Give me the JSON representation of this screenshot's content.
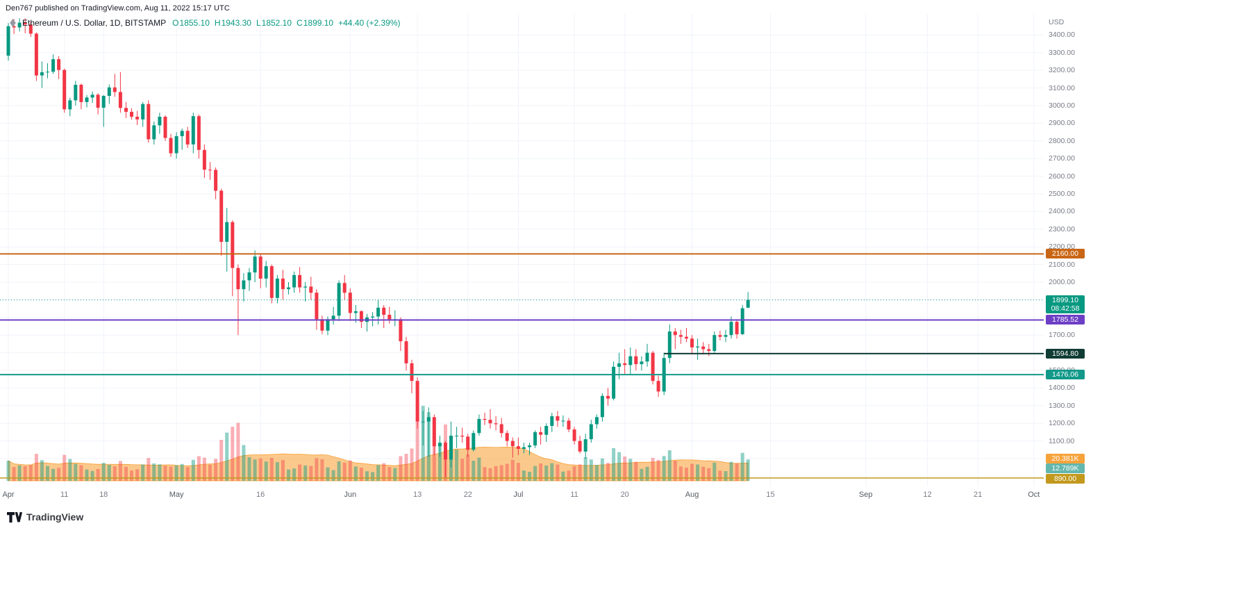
{
  "header": {
    "published_line": "Den767 published on TradingView.com, Aug 11, 2022 15:17 UTC"
  },
  "legend": {
    "title": "Ethereum / U.S. Dollar, 1D, BITSTAMP",
    "open_label": "O",
    "open": "1855.10",
    "high_label": "H",
    "high": "1943.30",
    "low_label": "L",
    "low": "1852.10",
    "close_label": "C",
    "close": "1899.10",
    "change": "+44.40 (+2.39%)",
    "up_color": "#089981"
  },
  "axis": {
    "currency": "USD",
    "price_tick_min": 1000,
    "price_tick_max": 3400,
    "price_tick_step": 100,
    "time_ticks": [
      [
        "Apr",
        0
      ],
      [
        "11",
        10
      ],
      [
        "18",
        17
      ],
      [
        "May",
        30
      ],
      [
        "16",
        45
      ],
      [
        "Jun",
        61
      ],
      [
        "13",
        73
      ],
      [
        "22",
        82
      ],
      [
        "Jul",
        91
      ],
      [
        "11",
        101
      ],
      [
        "20",
        110
      ],
      [
        "Aug",
        122
      ],
      [
        "15",
        136
      ],
      [
        "Sep",
        153
      ],
      [
        "12",
        164
      ],
      [
        "21",
        173
      ],
      [
        "Oct",
        183
      ]
    ]
  },
  "levels": [
    {
      "label": "2160.00",
      "price": 2160.0,
      "color": "#c96615",
      "from_day": 0
    },
    {
      "label": "1785.52",
      "price": 1785.52,
      "color": "#6c3fc5",
      "from_day": 0
    },
    {
      "label": "1594.80",
      "price": 1594.8,
      "color": "#103c34",
      "from_day": 117
    },
    {
      "label": "1476.06",
      "price": 1476.06,
      "color": "#12998a",
      "from_day": 0
    },
    {
      "label": "890.00",
      "price": 890.0,
      "color": "#c2991c",
      "from_day": 0,
      "thin": true
    }
  ],
  "last_price": {
    "label": "1899.10",
    "countdown": "08:42:58",
    "price": 1899.1,
    "color": "#089981"
  },
  "volume_badges": [
    {
      "label": "20.381K",
      "color": "#f7a33b"
    },
    {
      "label": "12.789K",
      "color": "#63b7ad"
    }
  ],
  "footer": {
    "logo_text": "TradingView"
  },
  "chart_data": {
    "type": "candlestick",
    "title": "Ethereum / U.S. Dollar",
    "interval": "1D",
    "exchange": "BITSTAMP",
    "x_axis": {
      "start": "2022-04-01",
      "last_candle": "2022-08-11",
      "end_visible": "2022-10-01"
    },
    "y_axis": {
      "label": "USD",
      "visible_range": [
        890,
        3500
      ]
    },
    "last_ohlc": {
      "o": 1855.1,
      "h": 1943.3,
      "l": 1852.1,
      "c": 1899.1,
      "change": 44.4,
      "change_pct": 2.39
    },
    "horizontal_levels": [
      2160.0,
      1785.52,
      1594.8,
      1476.06,
      890.0
    ],
    "volume_current_k": 12.789,
    "volume_ma_k": 20.381,
    "up_color": "#089981",
    "down_color": "#f23645",
    "volume_up_color": "rgba(8,153,129,0.45)",
    "volume_down_color": "rgba(242,54,69,0.4)",
    "volume_ma_color": "rgba(247,147,26,0.5)",
    "candles_note": "daily [open,high,low,close,volume_thousands] starting 2022-04-01",
    "candles": [
      [
        3283,
        3468,
        3255,
        3450,
        12.1
      ],
      [
        3450,
        3490,
        3406,
        3443,
        8.3
      ],
      [
        3443,
        3495,
        3420,
        3470,
        9.2
      ],
      [
        3470,
        3495,
        3410,
        3460,
        8.8
      ],
      [
        3460,
        3475,
        3390,
        3408,
        9.5
      ],
      [
        3408,
        3415,
        3140,
        3171,
        16.2
      ],
      [
        3171,
        3250,
        3100,
        3189,
        12.4
      ],
      [
        3189,
        3240,
        3155,
        3192,
        8.9
      ],
      [
        3192,
        3290,
        3180,
        3263,
        7.2
      ],
      [
        3263,
        3280,
        3150,
        3202,
        7.8
      ],
      [
        3202,
        3210,
        2960,
        2979,
        15.6
      ],
      [
        2979,
        3045,
        2940,
        3030,
        13.1
      ],
      [
        3030,
        3140,
        3000,
        3118,
        10.2
      ],
      [
        3118,
        3125,
        2980,
        3020,
        9.4
      ],
      [
        3020,
        3060,
        2990,
        3046,
        6.8
      ],
      [
        3046,
        3080,
        3015,
        3062,
        5.9
      ],
      [
        3062,
        3070,
        2950,
        2988,
        7.1
      ],
      [
        2988,
        3060,
        2880,
        3055,
        10.8
      ],
      [
        3055,
        3120,
        3010,
        3103,
        9.6
      ],
      [
        3103,
        3180,
        3050,
        3077,
        8.7
      ],
      [
        3077,
        3190,
        2960,
        2987,
        11.9
      ],
      [
        2987,
        3020,
        2930,
        2965,
        8.4
      ],
      [
        2965,
        2985,
        2920,
        2937,
        6.2
      ],
      [
        2937,
        2970,
        2890,
        2922,
        6.9
      ],
      [
        2922,
        3020,
        2880,
        3009,
        9.8
      ],
      [
        3009,
        3030,
        2790,
        2809,
        13.7
      ],
      [
        2809,
        2910,
        2780,
        2888,
        10.4
      ],
      [
        2888,
        2960,
        2840,
        2937,
        9.9
      ],
      [
        2937,
        2945,
        2800,
        2817,
        9.1
      ],
      [
        2817,
        2840,
        2710,
        2730,
        8.6
      ],
      [
        2730,
        2850,
        2700,
        2827,
        9.3
      ],
      [
        2827,
        2870,
        2750,
        2857,
        10.1
      ],
      [
        2857,
        2880,
        2760,
        2780,
        8.2
      ],
      [
        2780,
        2960,
        2730,
        2940,
        12.6
      ],
      [
        2940,
        2950,
        2700,
        2749,
        14.8
      ],
      [
        2749,
        2780,
        2590,
        2637,
        13.9
      ],
      [
        2637,
        2680,
        2580,
        2636,
        9.7
      ],
      [
        2636,
        2650,
        2470,
        2518,
        13.2
      ],
      [
        2518,
        2530,
        2150,
        2228,
        24.6
      ],
      [
        2228,
        2420,
        2060,
        2340,
        28.9
      ],
      [
        2340,
        2350,
        1920,
        2080,
        32.4
      ],
      [
        2080,
        2100,
        1700,
        1960,
        34.8
      ],
      [
        1960,
        2050,
        1890,
        2010,
        21.5
      ],
      [
        2010,
        2080,
        1950,
        2055,
        14.2
      ],
      [
        2055,
        2180,
        2000,
        2145,
        12.8
      ],
      [
        2145,
        2160,
        1965,
        2020,
        13.4
      ],
      [
        2020,
        2120,
        1970,
        2090,
        11.6
      ],
      [
        2090,
        2100,
        1880,
        1910,
        13.8
      ],
      [
        1910,
        2040,
        1880,
        2020,
        11.2
      ],
      [
        2020,
        2070,
        1900,
        1960,
        12.4
      ],
      [
        1960,
        2000,
        1930,
        1970,
        6.8
      ],
      [
        1970,
        2060,
        1940,
        2040,
        7.4
      ],
      [
        2040,
        2085,
        1940,
        1970,
        9.8
      ],
      [
        1970,
        2000,
        1890,
        1975,
        9.2
      ],
      [
        1975,
        2030,
        1900,
        1940,
        8.9
      ],
      [
        1940,
        1960,
        1730,
        1790,
        13.6
      ],
      [
        1790,
        1810,
        1705,
        1725,
        12.9
      ],
      [
        1725,
        1805,
        1700,
        1790,
        8.1
      ],
      [
        1790,
        1860,
        1760,
        1810,
        6.4
      ],
      [
        1810,
        2010,
        1780,
        1995,
        11.7
      ],
      [
        1995,
        2040,
        1900,
        1940,
        10.9
      ],
      [
        1940,
        1965,
        1780,
        1825,
        12.3
      ],
      [
        1825,
        1870,
        1770,
        1835,
        8.6
      ],
      [
        1835,
        1840,
        1740,
        1775,
        7.9
      ],
      [
        1775,
        1820,
        1720,
        1800,
        5.8
      ],
      [
        1800,
        1830,
        1750,
        1805,
        5.2
      ],
      [
        1805,
        1900,
        1760,
        1855,
        9.4
      ],
      [
        1855,
        1870,
        1740,
        1815,
        10.6
      ],
      [
        1815,
        1860,
        1765,
        1790,
        8.3
      ],
      [
        1790,
        1840,
        1750,
        1790,
        7.7
      ],
      [
        1790,
        1800,
        1610,
        1665,
        14.8
      ],
      [
        1665,
        1690,
        1500,
        1540,
        16.2
      ],
      [
        1540,
        1560,
        1370,
        1440,
        19.4
      ],
      [
        1440,
        1460,
        1170,
        1210,
        38.6
      ],
      [
        1210,
        1270,
        1075,
        1210,
        44.9
      ],
      [
        1210,
        1290,
        1010,
        1235,
        41.2
      ],
      [
        1235,
        1250,
        1020,
        1070,
        28.7
      ],
      [
        1070,
        1130,
        1010,
        1090,
        22.4
      ],
      [
        1090,
        1100,
        890,
        995,
        33.8
      ],
      [
        995,
        1210,
        950,
        1130,
        26.9
      ],
      [
        1130,
        1180,
        1060,
        1130,
        18.7
      ],
      [
        1130,
        1175,
        1090,
        1125,
        13.2
      ],
      [
        1125,
        1140,
        1010,
        1050,
        15.8
      ],
      [
        1050,
        1160,
        1040,
        1145,
        12.1
      ],
      [
        1145,
        1250,
        1130,
        1225,
        13.9
      ],
      [
        1225,
        1260,
        1190,
        1220,
        8.2
      ],
      [
        1220,
        1280,
        1170,
        1200,
        7.6
      ],
      [
        1200,
        1240,
        1160,
        1195,
        8.8
      ],
      [
        1195,
        1230,
        1120,
        1145,
        9.4
      ],
      [
        1145,
        1160,
        1070,
        1100,
        10.2
      ],
      [
        1100,
        1120,
        1005,
        1070,
        12.6
      ],
      [
        1070,
        1120,
        1020,
        1055,
        10.8
      ],
      [
        1055,
        1090,
        1030,
        1065,
        6.2
      ],
      [
        1065,
        1090,
        1020,
        1075,
        5.4
      ],
      [
        1075,
        1160,
        1060,
        1150,
        8.9
      ],
      [
        1150,
        1180,
        1080,
        1135,
        10.4
      ],
      [
        1135,
        1200,
        1095,
        1185,
        9.2
      ],
      [
        1185,
        1260,
        1150,
        1240,
        10.6
      ],
      [
        1240,
        1270,
        1180,
        1215,
        9.8
      ],
      [
        1215,
        1245,
        1180,
        1215,
        5.6
      ],
      [
        1215,
        1230,
        1150,
        1165,
        6.1
      ],
      [
        1165,
        1180,
        1080,
        1100,
        8.7
      ],
      [
        1100,
        1130,
        1030,
        1040,
        9.9
      ],
      [
        1040,
        1140,
        1000,
        1110,
        14.2
      ],
      [
        1110,
        1220,
        1090,
        1195,
        12.8
      ],
      [
        1195,
        1250,
        1170,
        1235,
        9.6
      ],
      [
        1235,
        1370,
        1210,
        1355,
        13.4
      ],
      [
        1355,
        1400,
        1300,
        1340,
        10.8
      ],
      [
        1340,
        1550,
        1330,
        1520,
        19.6
      ],
      [
        1520,
        1600,
        1450,
        1540,
        17.2
      ],
      [
        1540,
        1620,
        1480,
        1530,
        14.6
      ],
      [
        1530,
        1630,
        1475,
        1580,
        13.2
      ],
      [
        1580,
        1620,
        1500,
        1535,
        11.4
      ],
      [
        1535,
        1580,
        1500,
        1550,
        7.2
      ],
      [
        1550,
        1650,
        1520,
        1600,
        8.4
      ],
      [
        1600,
        1610,
        1420,
        1440,
        13.8
      ],
      [
        1440,
        1470,
        1350,
        1380,
        12.6
      ],
      [
        1380,
        1600,
        1360,
        1570,
        14.9
      ],
      [
        1570,
        1760,
        1540,
        1720,
        18.3
      ],
      [
        1720,
        1740,
        1620,
        1700,
        12.1
      ],
      [
        1700,
        1730,
        1650,
        1690,
        8.6
      ],
      [
        1690,
        1740,
        1660,
        1680,
        7.9
      ],
      [
        1680,
        1700,
        1590,
        1630,
        10.2
      ],
      [
        1630,
        1680,
        1560,
        1635,
        9.8
      ],
      [
        1635,
        1660,
        1590,
        1620,
        8.4
      ],
      [
        1620,
        1650,
        1580,
        1610,
        7.6
      ],
      [
        1610,
        1720,
        1600,
        1700,
        10.9
      ],
      [
        1700,
        1725,
        1670,
        1690,
        6.1
      ],
      [
        1690,
        1730,
        1660,
        1700,
        5.8
      ],
      [
        1700,
        1805,
        1680,
        1775,
        11.4
      ],
      [
        1775,
        1790,
        1680,
        1705,
        10.6
      ],
      [
        1705,
        1870,
        1700,
        1852,
        16.8
      ],
      [
        1855.1,
        1943.3,
        1852.1,
        1899.1,
        12.8
      ]
    ]
  }
}
